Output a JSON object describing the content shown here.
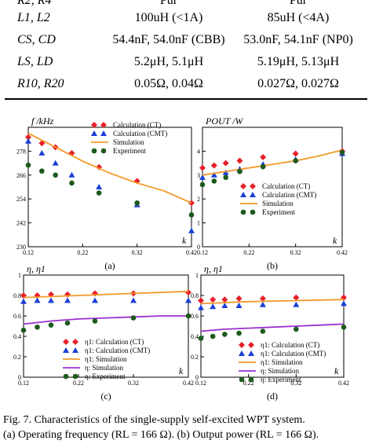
{
  "table": {
    "top_partial": [
      "R2, R4",
      "Pur",
      "Pur"
    ],
    "rows": [
      {
        "label": "L1, L2",
        "col1": "100uH (<1A)",
        "col2": "85uH (<4A)"
      },
      {
        "label": "CS, CD",
        "col1": "54.4nF, 54.0nF (CBB)",
        "col2": "53.0nF, 54.1nF (NP0)"
      },
      {
        "label": "LS, LD",
        "col1": "5.2μH, 5.1μH",
        "col2": "5.19μH, 5.13μH"
      },
      {
        "label": "R10, R20",
        "col1": "0.05Ω, 0.04Ω",
        "col2": "0.027Ω, 0.027Ω"
      }
    ]
  },
  "colors": {
    "calc_ct": "#e8202a",
    "calc_cmt": "#1a3fd6",
    "simulation": "#f39a2a",
    "simulation_eta": "#9b30d0",
    "experiment": "#1d5a1d"
  },
  "chart_data": [
    {
      "type": "scatter",
      "panel_label": "(a)",
      "ylabel": "f /kHz",
      "xlabel": "k",
      "xlim": [
        0.12,
        0.42
      ],
      "ylim": [
        230,
        290
      ],
      "xticks": [
        "0.12",
        "0.22",
        "0.32",
        "0.42"
      ],
      "yticks": [
        "230",
        "242",
        "254",
        "266",
        "278"
      ],
      "legend": [
        "Calculation (CT)",
        "Calculation (CMT)",
        "Simulation",
        "Experiment"
      ],
      "series": [
        {
          "name": "Calculation (CT)",
          "marker": "diamond",
          "color": "#e8202a",
          "x": [
            0.12,
            0.145,
            0.17,
            0.2,
            0.25,
            0.32,
            0.42
          ],
          "y": [
            285,
            282,
            280,
            277,
            270,
            263,
            252
          ]
        },
        {
          "name": "Calculation (CMT)",
          "marker": "triangle",
          "color": "#1a3fd6",
          "x": [
            0.12,
            0.145,
            0.17,
            0.2,
            0.25,
            0.32,
            0.42
          ],
          "y": [
            283,
            277,
            272,
            266,
            260,
            251,
            238
          ]
        },
        {
          "name": "Simulation",
          "marker": "line",
          "color": "#f39a2a",
          "x": [
            0.12,
            0.17,
            0.22,
            0.27,
            0.32,
            0.37,
            0.42
          ],
          "y": [
            287,
            280,
            273,
            267,
            262,
            258,
            252
          ]
        },
        {
          "name": "Experiment",
          "marker": "circle",
          "color": "#1d5a1d",
          "x": [
            0.12,
            0.145,
            0.17,
            0.2,
            0.25,
            0.32,
            0.42
          ],
          "y": [
            271,
            268,
            266,
            262,
            257,
            252,
            246
          ]
        }
      ]
    },
    {
      "type": "scatter",
      "panel_label": "(b)",
      "ylabel": "POUT /W",
      "xlabel": "k",
      "xlim": [
        0.12,
        0.42
      ],
      "ylim": [
        0,
        5
      ],
      "xticks": [
        "0.12",
        "0.22",
        "0.32",
        "0.42"
      ],
      "yticks": [
        "0",
        "1",
        "2",
        "3",
        "4"
      ],
      "legend": [
        "Calculation (CT)",
        "Calculation (CMT)",
        "Simulation",
        "Experiment"
      ],
      "series": [
        {
          "name": "Calculation (CT)",
          "marker": "diamond",
          "color": "#e8202a",
          "x": [
            0.12,
            0.145,
            0.17,
            0.2,
            0.25,
            0.32,
            0.42
          ],
          "y": [
            3.3,
            3.4,
            3.5,
            3.6,
            3.75,
            3.9,
            4.0
          ]
        },
        {
          "name": "Calculation (CMT)",
          "marker": "triangle",
          "color": "#1a3fd6",
          "x": [
            0.12,
            0.145,
            0.17,
            0.2,
            0.25,
            0.32,
            0.42
          ],
          "y": [
            2.9,
            3.0,
            3.1,
            3.25,
            3.45,
            3.65,
            3.9
          ]
        },
        {
          "name": "Simulation",
          "marker": "line",
          "color": "#f39a2a",
          "x": [
            0.12,
            0.17,
            0.22,
            0.27,
            0.32,
            0.37,
            0.42
          ],
          "y": [
            3.0,
            3.15,
            3.3,
            3.45,
            3.6,
            3.8,
            4.05
          ]
        },
        {
          "name": "Experiment",
          "marker": "circle",
          "color": "#1d5a1d",
          "x": [
            0.12,
            0.145,
            0.17,
            0.2,
            0.25,
            0.32,
            0.42
          ],
          "y": [
            2.6,
            2.75,
            2.9,
            3.15,
            3.35,
            3.6,
            3.95
          ]
        }
      ]
    },
    {
      "type": "scatter",
      "panel_label": "(c)",
      "ylabel": "η, η1",
      "xlabel": "k",
      "xlim": [
        0.12,
        0.42
      ],
      "ylim": [
        0,
        1
      ],
      "xticks": [
        "0.12",
        "0.22",
        "0.32",
        "0.42"
      ],
      "yticks": [
        "0",
        "0.2",
        "0.4",
        "0.6",
        "0.8",
        "1"
      ],
      "legend": [
        "η1: Calculation (CT)",
        "η1: Calculation (CMT)",
        "η1: Simulation",
        "η: Simulation",
        "η: Experiment"
      ],
      "series": [
        {
          "name": "η1: Calculation (CT)",
          "marker": "diamond",
          "color": "#e8202a",
          "x": [
            0.12,
            0.145,
            0.17,
            0.2,
            0.25,
            0.32,
            0.42
          ],
          "y": [
            0.8,
            0.8,
            0.81,
            0.81,
            0.82,
            0.82,
            0.83
          ]
        },
        {
          "name": "η1: Calculation (CMT)",
          "marker": "triangle",
          "color": "#1a3fd6",
          "x": [
            0.12,
            0.145,
            0.17,
            0.2,
            0.25,
            0.32,
            0.42
          ],
          "y": [
            0.74,
            0.75,
            0.75,
            0.75,
            0.75,
            0.75,
            0.75
          ]
        },
        {
          "name": "η1: Simulation",
          "marker": "line",
          "color": "#f39a2a",
          "x": [
            0.12,
            0.22,
            0.32,
            0.42
          ],
          "y": [
            0.78,
            0.8,
            0.82,
            0.84
          ]
        },
        {
          "name": "η: Simulation",
          "marker": "line",
          "color": "#9b30d0",
          "x": [
            0.12,
            0.17,
            0.22,
            0.27,
            0.32,
            0.37,
            0.42
          ],
          "y": [
            0.52,
            0.55,
            0.57,
            0.58,
            0.59,
            0.6,
            0.6
          ]
        },
        {
          "name": "η: Experiment",
          "marker": "circle",
          "color": "#1d5a1d",
          "x": [
            0.12,
            0.145,
            0.17,
            0.2,
            0.25,
            0.32,
            0.42
          ],
          "y": [
            0.46,
            0.49,
            0.51,
            0.53,
            0.55,
            0.58,
            0.6
          ]
        }
      ]
    },
    {
      "type": "scatter",
      "panel_label": "(d)",
      "ylabel": "η, η1",
      "xlabel": "k",
      "xlim": [
        0.12,
        0.42
      ],
      "ylim": [
        0,
        1
      ],
      "xticks": [
        "0.12",
        "0.22",
        "0.32",
        "0.42"
      ],
      "yticks": [
        "0",
        "0.2",
        "0.4",
        "0.6",
        "0.8",
        "1"
      ],
      "legend": [
        "η1: Calculation (CT)",
        "η1: Calculation (CMT)",
        "η1: Simulation",
        "η: Simulation",
        "η: Experiment"
      ],
      "series": [
        {
          "name": "η1: Calculation (CT)",
          "marker": "diamond",
          "color": "#e8202a",
          "x": [
            0.12,
            0.145,
            0.17,
            0.2,
            0.25,
            0.32,
            0.42
          ],
          "y": [
            0.75,
            0.76,
            0.76,
            0.77,
            0.77,
            0.78,
            0.78
          ]
        },
        {
          "name": "η1: Calculation (CMT)",
          "marker": "triangle",
          "color": "#1a3fd6",
          "x": [
            0.12,
            0.145,
            0.17,
            0.2,
            0.25,
            0.32,
            0.42
          ],
          "y": [
            0.68,
            0.69,
            0.7,
            0.7,
            0.71,
            0.71,
            0.72
          ]
        },
        {
          "name": "η1: Simulation",
          "marker": "line",
          "color": "#f39a2a",
          "x": [
            0.12,
            0.22,
            0.32,
            0.42
          ],
          "y": [
            0.72,
            0.74,
            0.75,
            0.76
          ]
        },
        {
          "name": "η: Simulation",
          "marker": "line",
          "color": "#9b30d0",
          "x": [
            0.12,
            0.17,
            0.22,
            0.27,
            0.32,
            0.37,
            0.42
          ],
          "y": [
            0.45,
            0.47,
            0.48,
            0.49,
            0.5,
            0.51,
            0.52
          ]
        },
        {
          "name": "η: Experiment",
          "marker": "circle",
          "color": "#1d5a1d",
          "x": [
            0.12,
            0.145,
            0.17,
            0.2,
            0.25,
            0.32,
            0.42
          ],
          "y": [
            0.38,
            0.4,
            0.42,
            0.43,
            0.45,
            0.47,
            0.49
          ]
        }
      ]
    }
  ],
  "caption": {
    "line1": "Fig. 7.    Characteristics of the single-supply self-excited WPT system.",
    "line2": "(a) Operating frequency (RL = 166 Ω). (b) Output power (RL = 166 Ω)."
  }
}
